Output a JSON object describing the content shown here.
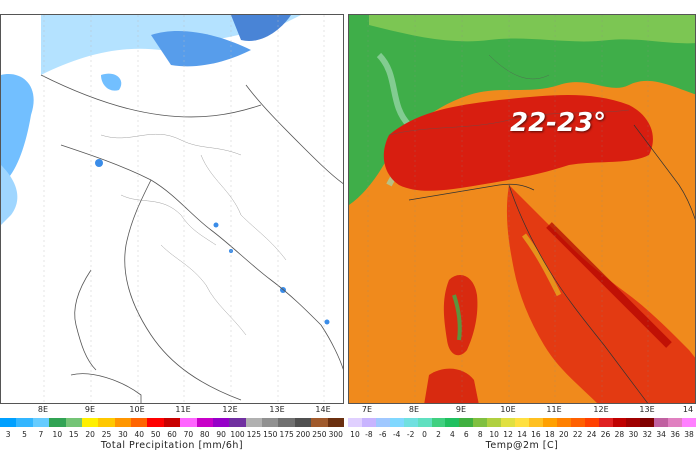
{
  "left_map": {
    "lon_ticks": [
      "8E",
      "9E",
      "10E",
      "11E",
      "12E",
      "13E",
      "14E"
    ],
    "colorbar_labels": [
      "3",
      "5",
      "7",
      "10",
      "15",
      "20",
      "25",
      "30",
      "40",
      "50",
      "60",
      "70",
      "80",
      "90",
      "100",
      "125",
      "150",
      "175",
      "200",
      "250",
      "300"
    ],
    "colorbar_colors": [
      "#00a0ff",
      "#33b6ff",
      "#66ccff",
      "#31a354",
      "#74c476",
      "#fff000",
      "#ffc800",
      "#ff9600",
      "#ff6400",
      "#ff0000",
      "#c80000",
      "#ff64ff",
      "#c800c8",
      "#9600c8",
      "#7030a0",
      "#b0b0b0",
      "#909090",
      "#707070",
      "#505050",
      "#a05a2c",
      "#6b3010"
    ],
    "title": "Total Precipitation [mm/6h]"
  },
  "right_map": {
    "lon_ticks": [
      "7E",
      "8E",
      "9E",
      "10E",
      "11E",
      "12E",
      "13E",
      "14"
    ],
    "colorbar_labels": [
      "10",
      "-8",
      "-6",
      "-4",
      "-2",
      "0",
      "2",
      "4",
      "6",
      "8",
      "10",
      "12",
      "14",
      "16",
      "18",
      "20",
      "22",
      "24",
      "26",
      "28",
      "30",
      "32",
      "34",
      "36",
      "38"
    ],
    "colorbar_colors": [
      "#e0d0ff",
      "#c8b4ff",
      "#a0c8ff",
      "#80d8ff",
      "#70e0e0",
      "#60e0c0",
      "#40d080",
      "#20c060",
      "#40b040",
      "#80c040",
      "#b0d040",
      "#e0e040",
      "#ffe040",
      "#ffc020",
      "#ffa000",
      "#ff8000",
      "#ff6000",
      "#ff4000",
      "#e02020",
      "#c00000",
      "#a00000",
      "#800000",
      "#c060a0",
      "#e080c0",
      "#ff80ff"
    ],
    "title": "Temp@2m [C]",
    "annotation": "22-23°"
  },
  "colors": {
    "sea_temp": "#f08a1c",
    "land_hot": "#d81e10",
    "alps_green": "#3fae49",
    "precip_blue": "#3aa0ff"
  }
}
